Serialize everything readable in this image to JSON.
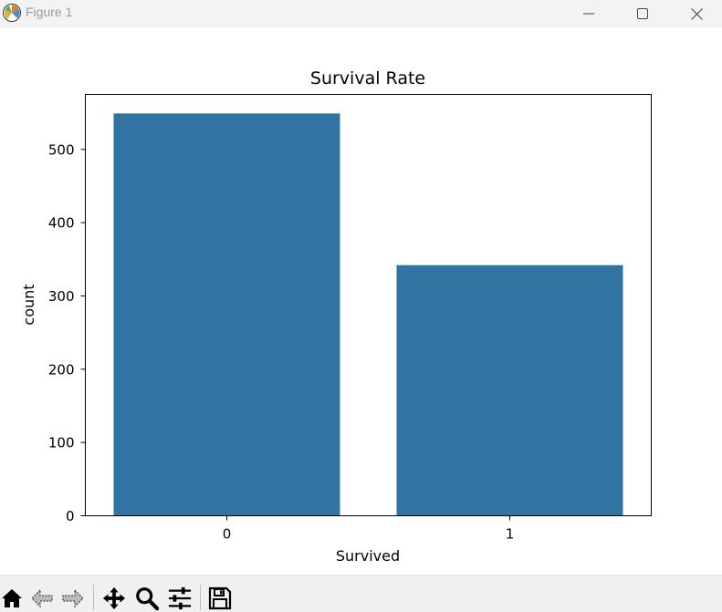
{
  "window": {
    "title": "Figure 1",
    "app_icon": "matplotlib-icon",
    "controls": [
      "minimize-icon",
      "maximize-icon",
      "close-icon"
    ]
  },
  "chart_data": {
    "type": "bar",
    "title": "Survival Rate",
    "xlabel": "Survived",
    "ylabel": "count",
    "categories": [
      "0",
      "1"
    ],
    "values": [
      549,
      342
    ],
    "ylim": [
      0,
      575
    ],
    "yticks": [
      0,
      100,
      200,
      300,
      400,
      500
    ],
    "bar_color": "#3274a1",
    "grid": false,
    "legend": "none"
  },
  "toolbar": {
    "items": [
      "home-icon",
      "back-icon",
      "forward-icon",
      "pan-icon",
      "zoom-icon",
      "configure-subplots-icon",
      "save-icon"
    ]
  }
}
